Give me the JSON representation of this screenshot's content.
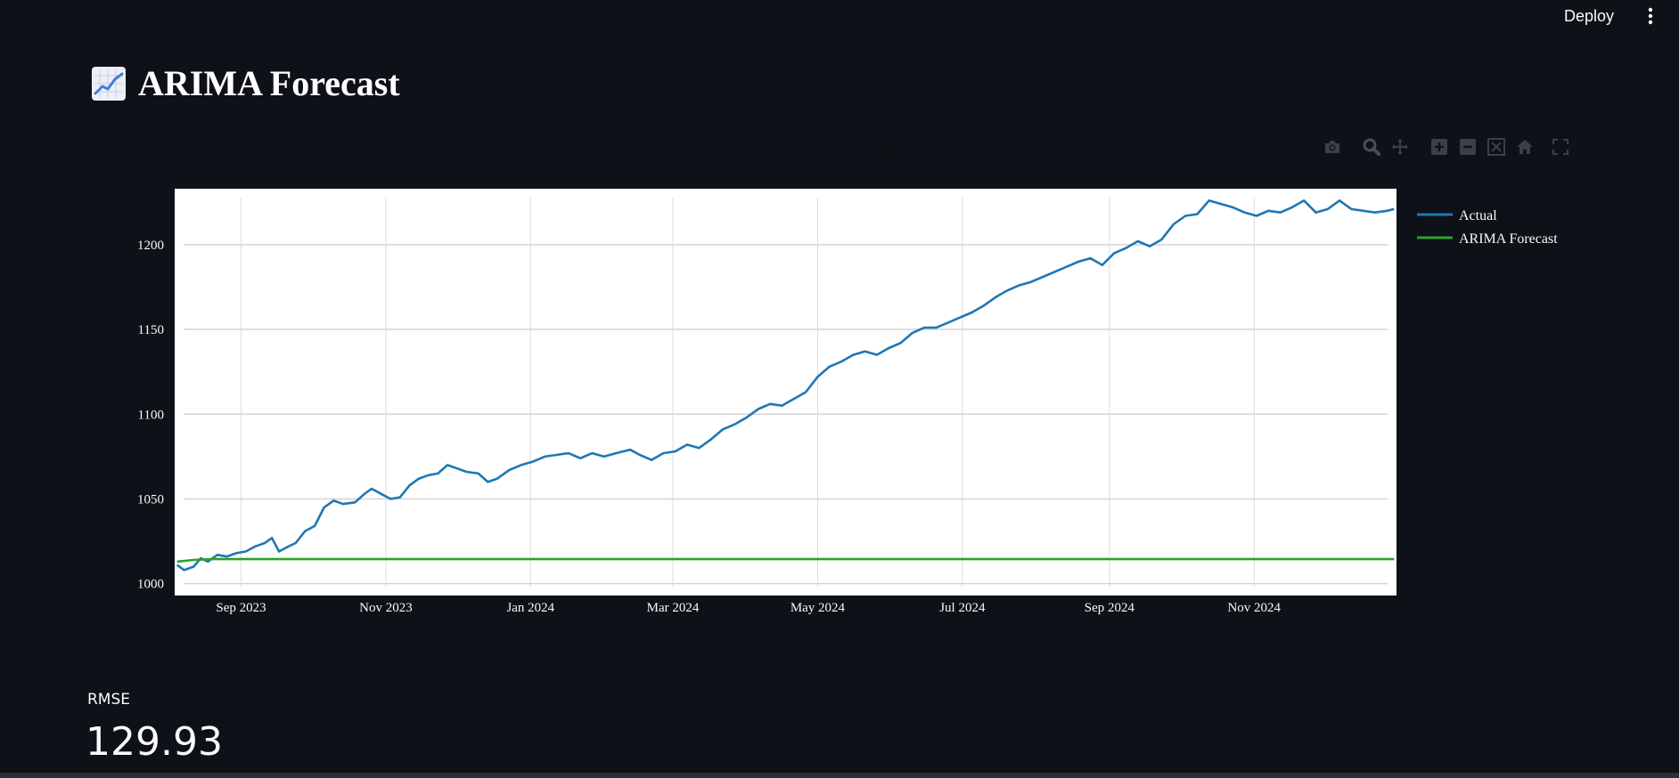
{
  "header": {
    "deploy_label": "Deploy",
    "menu_icon": "kebab-menu-icon"
  },
  "page": {
    "title": "ARIMA Forecast",
    "title_icon": "chart-increasing-icon"
  },
  "modebar": {
    "buttons": [
      "camera-icon",
      "zoom-icon",
      "pan-icon",
      "zoom-in-icon",
      "zoom-out-icon",
      "autoscale-icon",
      "reset-axes-icon",
      "fullscreen-icon"
    ]
  },
  "metric": {
    "label": "RMSE",
    "value": "129.93"
  },
  "colors": {
    "background": "#0e1117",
    "plot_bg": "#ffffff",
    "actual": "#1f77b4",
    "forecast": "#2ca02c"
  },
  "chart_data": {
    "type": "line",
    "title": "ARIMA Forecast vs Actual",
    "xlabel": "Date",
    "ylabel": "Price",
    "ylim": [
      993,
      1233
    ],
    "xlim": [
      "2023-08-04",
      "2024-12-31"
    ],
    "yticks": [
      1000,
      1050,
      1100,
      1150,
      1200
    ],
    "xticks": [
      {
        "date": "2023-09-01",
        "label": "Sep 2023"
      },
      {
        "date": "2023-11-01",
        "label": "Nov 2023"
      },
      {
        "date": "2024-01-01",
        "label": "Jan 2024"
      },
      {
        "date": "2024-03-01",
        "label": "Mar 2024"
      },
      {
        "date": "2024-05-01",
        "label": "May 2024"
      },
      {
        "date": "2024-07-01",
        "label": "Jul 2024"
      },
      {
        "date": "2024-09-01",
        "label": "Sep 2024"
      },
      {
        "date": "2024-11-01",
        "label": "Nov 2024"
      }
    ],
    "grid": true,
    "legend_position": "top-right",
    "series": [
      {
        "name": "Actual",
        "color": "#1f77b4",
        "points": [
          [
            "2023-08-05",
            1011
          ],
          [
            "2023-08-08",
            1008
          ],
          [
            "2023-08-12",
            1010
          ],
          [
            "2023-08-15",
            1015
          ],
          [
            "2023-08-18",
            1013
          ],
          [
            "2023-08-22",
            1017
          ],
          [
            "2023-08-26",
            1016
          ],
          [
            "2023-08-30",
            1018
          ],
          [
            "2023-09-03",
            1019
          ],
          [
            "2023-09-07",
            1022
          ],
          [
            "2023-09-11",
            1024
          ],
          [
            "2023-09-14",
            1027
          ],
          [
            "2023-09-17",
            1019
          ],
          [
            "2023-09-21",
            1022
          ],
          [
            "2023-09-24",
            1024
          ],
          [
            "2023-09-28",
            1031
          ],
          [
            "2023-10-02",
            1034
          ],
          [
            "2023-10-06",
            1045
          ],
          [
            "2023-10-10",
            1049
          ],
          [
            "2023-10-14",
            1047
          ],
          [
            "2023-10-19",
            1048
          ],
          [
            "2023-10-23",
            1053
          ],
          [
            "2023-10-26",
            1056
          ],
          [
            "2023-10-30",
            1053
          ],
          [
            "2023-11-03",
            1050
          ],
          [
            "2023-11-07",
            1051
          ],
          [
            "2023-11-11",
            1058
          ],
          [
            "2023-11-15",
            1062
          ],
          [
            "2023-11-19",
            1064
          ],
          [
            "2023-11-23",
            1065
          ],
          [
            "2023-11-27",
            1070
          ],
          [
            "2023-12-01",
            1068
          ],
          [
            "2023-12-05",
            1066
          ],
          [
            "2023-12-10",
            1065
          ],
          [
            "2023-12-14",
            1060
          ],
          [
            "2023-12-18",
            1062
          ],
          [
            "2023-12-23",
            1067
          ],
          [
            "2023-12-28",
            1070
          ],
          [
            "2024-01-02",
            1072
          ],
          [
            "2024-01-07",
            1075
          ],
          [
            "2024-01-12",
            1076
          ],
          [
            "2024-01-17",
            1077
          ],
          [
            "2024-01-22",
            1074
          ],
          [
            "2024-01-27",
            1077
          ],
          [
            "2024-02-01",
            1075
          ],
          [
            "2024-02-06",
            1077
          ],
          [
            "2024-02-12",
            1079
          ],
          [
            "2024-02-16",
            1076
          ],
          [
            "2024-02-21",
            1073
          ],
          [
            "2024-02-26",
            1077
          ],
          [
            "2024-03-02",
            1078
          ],
          [
            "2024-03-07",
            1082
          ],
          [
            "2024-03-12",
            1080
          ],
          [
            "2024-03-17",
            1085
          ],
          [
            "2024-03-22",
            1091
          ],
          [
            "2024-03-27",
            1094
          ],
          [
            "2024-04-01",
            1098
          ],
          [
            "2024-04-06",
            1103
          ],
          [
            "2024-04-11",
            1106
          ],
          [
            "2024-04-16",
            1105
          ],
          [
            "2024-04-21",
            1109
          ],
          [
            "2024-04-26",
            1113
          ],
          [
            "2024-05-01",
            1122
          ],
          [
            "2024-05-06",
            1128
          ],
          [
            "2024-05-11",
            1131
          ],
          [
            "2024-05-16",
            1135
          ],
          [
            "2024-05-21",
            1137
          ],
          [
            "2024-05-26",
            1135
          ],
          [
            "2024-05-31",
            1139
          ],
          [
            "2024-06-05",
            1142
          ],
          [
            "2024-06-10",
            1148
          ],
          [
            "2024-06-15",
            1151
          ],
          [
            "2024-06-20",
            1151
          ],
          [
            "2024-06-25",
            1154
          ],
          [
            "2024-06-30",
            1157
          ],
          [
            "2024-07-05",
            1160
          ],
          [
            "2024-07-10",
            1164
          ],
          [
            "2024-07-15",
            1169
          ],
          [
            "2024-07-20",
            1173
          ],
          [
            "2024-07-25",
            1176
          ],
          [
            "2024-07-30",
            1178
          ],
          [
            "2024-08-04",
            1181
          ],
          [
            "2024-08-09",
            1184
          ],
          [
            "2024-08-14",
            1187
          ],
          [
            "2024-08-19",
            1190
          ],
          [
            "2024-08-24",
            1192
          ],
          [
            "2024-08-29",
            1188
          ],
          [
            "2024-09-03",
            1195
          ],
          [
            "2024-09-08",
            1198
          ],
          [
            "2024-09-13",
            1202
          ],
          [
            "2024-09-18",
            1199
          ],
          [
            "2024-09-23",
            1203
          ],
          [
            "2024-09-28",
            1212
          ],
          [
            "2024-10-03",
            1217
          ],
          [
            "2024-10-08",
            1218
          ],
          [
            "2024-10-13",
            1226
          ],
          [
            "2024-10-18",
            1224
          ],
          [
            "2024-10-23",
            1222
          ],
          [
            "2024-10-28",
            1219
          ],
          [
            "2024-11-02",
            1217
          ],
          [
            "2024-11-07",
            1220
          ],
          [
            "2024-11-12",
            1219
          ],
          [
            "2024-11-17",
            1222
          ],
          [
            "2024-11-22",
            1226
          ],
          [
            "2024-11-27",
            1219
          ],
          [
            "2024-12-02",
            1221
          ],
          [
            "2024-12-07",
            1226
          ],
          [
            "2024-12-12",
            1221
          ],
          [
            "2024-12-17",
            1220
          ],
          [
            "2024-12-22",
            1219
          ],
          [
            "2024-12-27",
            1220
          ],
          [
            "2024-12-30",
            1221
          ]
        ]
      },
      {
        "name": "ARIMA Forecast",
        "color": "#2ca02c",
        "points": [
          [
            "2023-08-05",
            1013
          ],
          [
            "2023-08-12",
            1014
          ],
          [
            "2023-08-20",
            1014.5
          ],
          [
            "2024-12-30",
            1014.5
          ]
        ]
      }
    ]
  }
}
